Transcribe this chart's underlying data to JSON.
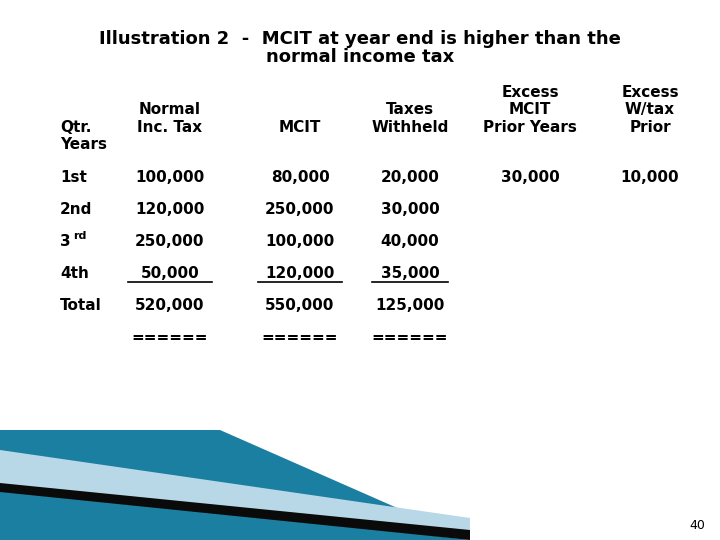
{
  "title_line1": "Illustration 2  -  MCIT at year end is higher than the",
  "title_line2": "normal income tax",
  "background_color": "#ffffff",
  "page_number": "40",
  "rows": [
    {
      "qtr": "1st",
      "normal": "100,000",
      "mcit": "80,000",
      "taxes": "20,000",
      "excess_mcit": "30,000",
      "excess_wtax": "10,000",
      "underline_normal": false,
      "underline_mcit": false,
      "underline_taxes": false
    },
    {
      "qtr": "2nd",
      "normal": "120,000",
      "mcit": "250,000",
      "taxes": "30,000",
      "excess_mcit": "",
      "excess_wtax": "",
      "underline_normal": false,
      "underline_mcit": false,
      "underline_taxes": false
    },
    {
      "qtr": "3rd",
      "normal": "250,000",
      "mcit": "100,000",
      "taxes": "40,000",
      "excess_mcit": "",
      "excess_wtax": "",
      "underline_normal": false,
      "underline_mcit": false,
      "underline_taxes": false
    },
    {
      "qtr": "4th",
      "normal": "50,000",
      "mcit": "120,000",
      "taxes": "35,000",
      "excess_mcit": "",
      "excess_wtax": "",
      "underline_normal": true,
      "underline_mcit": true,
      "underline_taxes": true
    },
    {
      "qtr": "Total",
      "normal": "520,000",
      "mcit": "550,000",
      "taxes": "125,000",
      "excess_mcit": "",
      "excess_wtax": "",
      "underline_normal": false,
      "underline_mcit": false,
      "underline_taxes": false
    },
    {
      "qtr": "",
      "normal": "======",
      "mcit": "======",
      "taxes": "======",
      "excess_mcit": "",
      "excess_wtax": "",
      "underline_normal": false,
      "underline_mcit": false,
      "underline_taxes": false
    }
  ],
  "font_size_title": 13,
  "font_size_body": 11,
  "bottom_teal_color": "#1a7fa0",
  "bottom_light_color": "#b8d8e8",
  "bottom_black_color": "#0a0a0a"
}
